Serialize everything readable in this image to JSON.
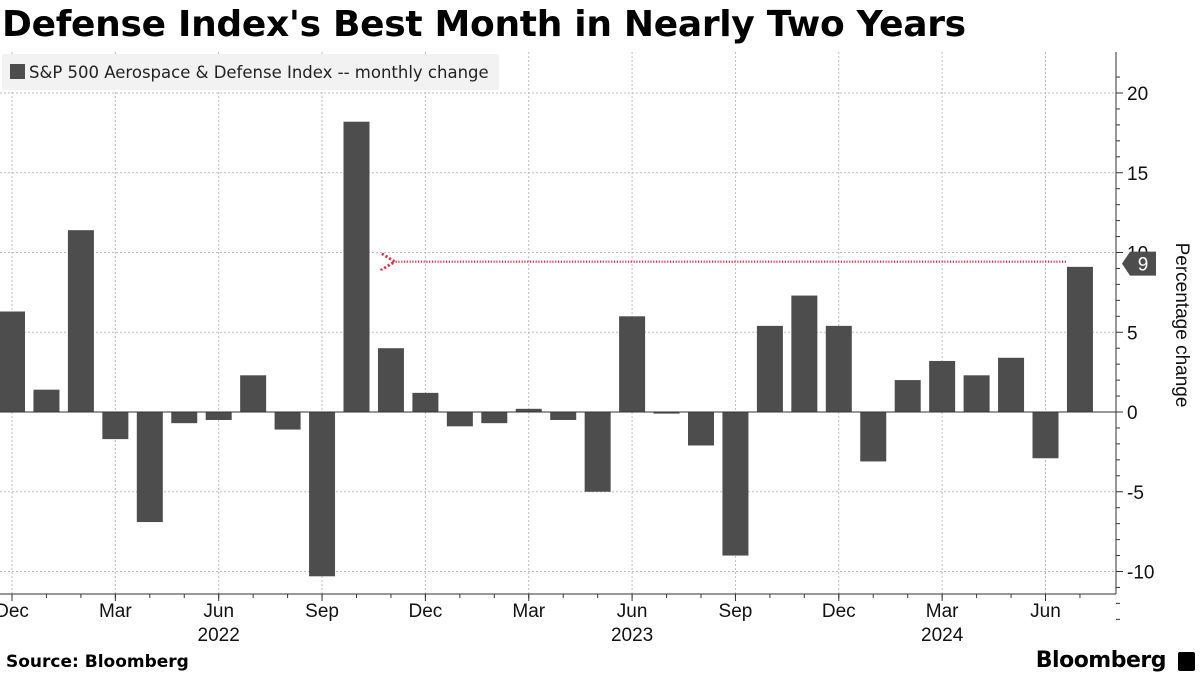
{
  "header": {
    "title": "Defense Index's Best Month in Nearly Two Years"
  },
  "footer": {
    "source": "Source: Bloomberg",
    "brand": "Bloomberg"
  },
  "colors": {
    "bar": "#4d4d4d",
    "grid": "#bdbdbd",
    "arrow": "#e0294a",
    "legend_bg": "#f2f2f2"
  },
  "chart_data": {
    "type": "bar",
    "title": "Defense Index's Best Month in Nearly Two Years",
    "ylabel": "Percentage change",
    "ylim": [
      -13,
      21
    ],
    "yticks": [
      -10,
      -5,
      0,
      5,
      10,
      15,
      20
    ],
    "grid": true,
    "legend_position": "top-left",
    "series": [
      {
        "name": "S&P 500 Aerospace & Defense Index -- monthly change",
        "values": [
          6.3,
          1.4,
          11.4,
          -1.7,
          -6.9,
          -0.7,
          -0.5,
          2.3,
          -1.1,
          -10.3,
          18.2,
          4.0,
          1.2,
          -0.9,
          -0.7,
          0.2,
          -0.5,
          -5.0,
          6.0,
          -0.1,
          -2.1,
          -9.0,
          5.4,
          7.3,
          5.4,
          -3.1,
          2.0,
          3.2,
          2.3,
          3.4,
          -2.9,
          9.1
        ]
      }
    ],
    "categories": [
      "2021-12",
      "2022-01",
      "2022-02",
      "2022-03",
      "2022-04",
      "2022-05",
      "2022-06",
      "2022-07",
      "2022-08",
      "2022-09",
      "2022-10",
      "2022-11",
      "2022-12",
      "2023-01",
      "2023-02",
      "2023-03",
      "2023-04",
      "2023-05",
      "2023-06",
      "2023-07",
      "2023-08",
      "2023-09",
      "2023-10",
      "2023-11",
      "2023-12",
      "2024-01",
      "2024-02",
      "2024-03",
      "2024-04",
      "2024-05",
      "2024-06",
      "2024-07"
    ],
    "x_ticks": [
      {
        "index": 0,
        "label": "Dec"
      },
      {
        "index": 3,
        "label": "Mar"
      },
      {
        "index": 6,
        "label": "Jun"
      },
      {
        "index": 9,
        "label": "Sep"
      },
      {
        "index": 12,
        "label": "Dec"
      },
      {
        "index": 15,
        "label": "Mar"
      },
      {
        "index": 18,
        "label": "Jun"
      },
      {
        "index": 21,
        "label": "Sep"
      },
      {
        "index": 24,
        "label": "Dec"
      },
      {
        "index": 27,
        "label": "Mar"
      },
      {
        "index": 30,
        "label": "Jun"
      }
    ],
    "year_labels": [
      {
        "index": 6,
        "label": "2022"
      },
      {
        "index": 18,
        "label": "2023"
      },
      {
        "index": 27,
        "label": "2024"
      }
    ],
    "annotation": {
      "label": "9",
      "value": 9.3,
      "from_index": 31,
      "to_index": 11
    }
  }
}
